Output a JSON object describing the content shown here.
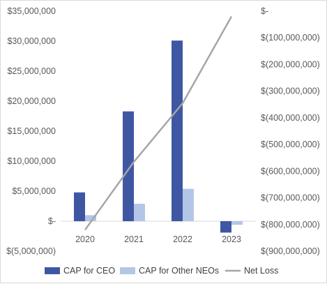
{
  "chart_data": {
    "type": "bar",
    "categories": [
      "2020",
      "2021",
      "2022",
      "2023"
    ],
    "series": [
      {
        "name": "CAP for CEO",
        "type": "bar",
        "axis": "left",
        "values": [
          4800000,
          18300000,
          30100000,
          -1900000
        ]
      },
      {
        "name": "CAP for Other NEOs",
        "type": "bar",
        "axis": "left",
        "values": [
          1000000,
          2900000,
          5400000,
          -600000
        ]
      },
      {
        "name": "Net Loss",
        "type": "line",
        "axis": "right",
        "values": [
          -820000000,
          -565000000,
          -345000000,
          -20000000
        ]
      }
    ],
    "left_axis": {
      "ylim": [
        -5000000,
        35000000
      ],
      "ticks": [
        35000000,
        30000000,
        25000000,
        20000000,
        15000000,
        10000000,
        5000000,
        0,
        -5000000
      ],
      "tick_labels": [
        "$35,000,000",
        "$30,000,000",
        "$25,000,000",
        "$20,000,000",
        "$15,000,000",
        "$10,000,000",
        "$5,000,000",
        "$-",
        "$(5,000,000)"
      ]
    },
    "right_axis": {
      "ylim": [
        -900000000,
        0
      ],
      "ticks": [
        0,
        -100000000,
        -200000000,
        -300000000,
        -400000000,
        -500000000,
        -600000000,
        -700000000,
        -800000000,
        -900000000
      ],
      "tick_labels": [
        "$-",
        "$(100,000,000)",
        "$(200,000,000)",
        "$(300,000,000)",
        "$(400,000,000)",
        "$(500,000,000)",
        "$(600,000,000)",
        "$(700,000,000)",
        "$(800,000,000)",
        "$(900,000,000)"
      ]
    },
    "legend_position": "bottom",
    "grid": false,
    "colors": {
      "ceo": "#3f57a3",
      "neo": "#b4c6e7",
      "net_loss": "#a6a6a6",
      "axis_line": "#d9d9d9"
    }
  }
}
